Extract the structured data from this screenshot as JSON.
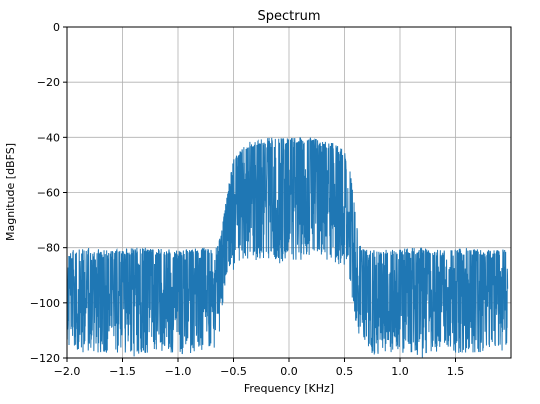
{
  "chart_data": {
    "type": "line",
    "title": "Spectrum",
    "xlabel": "Frequency [KHz]",
    "ylabel": "Magnitude [dBFS]",
    "xlim": [
      -2.0,
      2.0
    ],
    "ylim": [
      -120,
      0
    ],
    "x_ticks": [
      -2.0,
      -1.5,
      -1.0,
      -0.5,
      0.0,
      0.5,
      1.0,
      1.5
    ],
    "x_tick_labels": [
      "−2.0",
      "−1.5",
      "−1.0",
      "−0.5",
      "0.0",
      "0.5",
      "1.0",
      "1.5"
    ],
    "y_ticks": [
      0,
      -20,
      -40,
      -60,
      -80,
      -100,
      -120
    ],
    "y_tick_labels": [
      "0",
      "−20",
      "−40",
      "−60",
      "−80",
      "−100",
      "−120"
    ],
    "grid": true,
    "legend": "none",
    "line_color": "#1f77b4",
    "series": [
      {
        "x": [
          -2.0,
          -1.8,
          -1.6,
          -1.4,
          -1.2,
          -1.0,
          -0.8,
          -0.65,
          -0.6,
          -0.55,
          -0.5,
          -0.4,
          -0.3,
          -0.2,
          -0.1,
          0.0,
          0.1,
          0.2,
          0.3,
          0.4,
          0.5,
          0.55,
          0.6,
          0.65,
          0.8,
          1.0,
          1.2,
          1.4,
          1.6,
          1.8,
          1.97
        ],
        "upper": [
          -81,
          -80,
          -81,
          -80,
          -80,
          -81,
          -80,
          -80,
          -72,
          -58,
          -48,
          -42,
          -41,
          -40,
          -40,
          -40,
          -40,
          -40,
          -41,
          -42,
          -45,
          -52,
          -68,
          -80,
          -81,
          -80,
          -80,
          -81,
          -80,
          -81,
          -80
        ],
        "lower": [
          -117,
          -119,
          -118,
          -120,
          -117,
          -119,
          -118,
          -116,
          -104,
          -90,
          -88,
          -84,
          -85,
          -84,
          -86,
          -84,
          -85,
          -84,
          -84,
          -86,
          -88,
          -92,
          -108,
          -118,
          -119,
          -118,
          -120,
          -117,
          -119,
          -118,
          -117
        ]
      }
    ]
  }
}
